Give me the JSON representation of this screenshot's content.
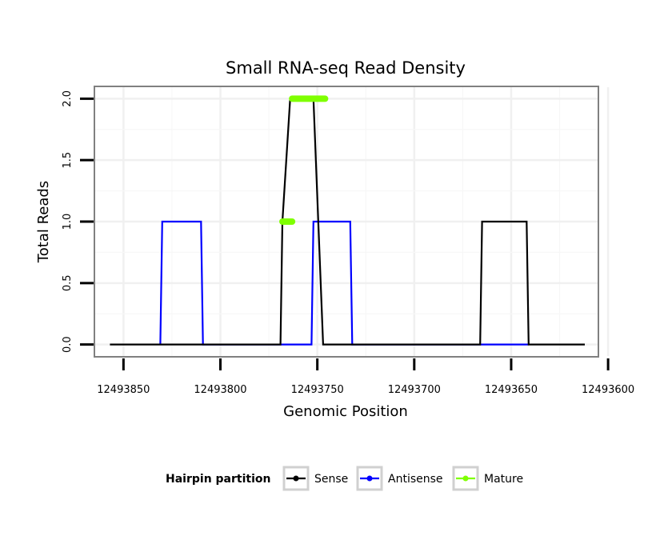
{
  "chart_data": {
    "type": "line",
    "title": "Small RNA-seq Read Density",
    "xlabel": "Genomic Position",
    "ylabel": "Total Reads",
    "x_reversed": true,
    "xlim": [
      12493605,
      12493865
    ],
    "ylim": [
      -0.1,
      2.1
    ],
    "x_ticks": [
      12493850,
      12493800,
      12493750,
      12493700,
      12493650,
      12493600
    ],
    "x_tick_labels": [
      "12493850",
      "12493800",
      "12493750",
      "12493700",
      "12493650",
      "12493600"
    ],
    "y_ticks": [
      0,
      0.5,
      1,
      1.5,
      2
    ],
    "y_tick_labels": [
      "0.0",
      "0.5",
      "1.0",
      "1.5",
      "2.0"
    ],
    "legend": {
      "title": "Hairpin partition",
      "position": "bottom",
      "entries": [
        {
          "name": "Sense",
          "color": "#000000"
        },
        {
          "name": "Antisense",
          "color": "#0000ff"
        },
        {
          "name": "Mature",
          "color": "#7fff00"
        }
      ]
    },
    "series": [
      {
        "name": "Sense",
        "color": "#000000",
        "style": "line",
        "x": [
          12493857,
          12493769,
          12493768,
          12493764,
          12493752,
          12493747,
          12493746,
          12493666,
          12493665,
          12493642,
          12493641,
          12493612
        ],
        "y": [
          0,
          0,
          1,
          2,
          2,
          0,
          0,
          0,
          1,
          1,
          0,
          0
        ]
      },
      {
        "name": "Antisense",
        "color": "#0000ff",
        "style": "line",
        "x": [
          12493831,
          12493830,
          12493810,
          12493809,
          12493753,
          12493752,
          12493733,
          12493732,
          12493666,
          12493641
        ],
        "y": [
          0,
          1,
          1,
          0,
          0,
          1,
          1,
          0,
          0,
          0
        ]
      },
      {
        "name": "Mature",
        "color": "#7fff00",
        "style": "thick-segment",
        "segments": [
          {
            "x": [
              12493768,
              12493763
            ],
            "y": 1
          },
          {
            "x": [
              12493763,
              12493746
            ],
            "y": 2
          }
        ]
      }
    ]
  }
}
